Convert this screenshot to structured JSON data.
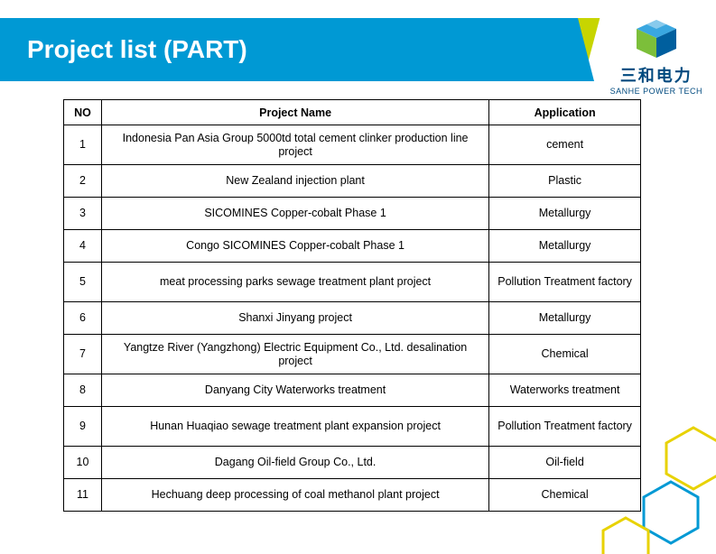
{
  "header": {
    "title": "Project list (PART)",
    "bar_color": "#0099d4",
    "accent_color": "#c7d500"
  },
  "logo": {
    "cn": "三和电力",
    "en": "SANHE POWER TECH",
    "cube_color_top": "#3aa7e0",
    "cube_color_left": "#7cbf3a",
    "cube_color_right": "#005f9e"
  },
  "table": {
    "columns": [
      "NO",
      "Project Name",
      "Application"
    ],
    "rows": [
      {
        "no": "1",
        "name": "Indonesia Pan Asia Group 5000td total cement clinker production line project",
        "app": "cement",
        "tall": true
      },
      {
        "no": "2",
        "name": "New Zealand injection plant",
        "app": "Plastic"
      },
      {
        "no": "3",
        "name": "SICOMINES Copper-cobalt Phase 1",
        "app": "Metallurgy"
      },
      {
        "no": "4",
        "name": "Congo SICOMINES Copper-cobalt Phase 1",
        "app": "Metallurgy"
      },
      {
        "no": "5",
        "name": "meat processing parks sewage treatment plant project",
        "app": "Pollution Treatment factory",
        "tall": true
      },
      {
        "no": "6",
        "name": "Shanxi Jinyang project",
        "app": "Metallurgy"
      },
      {
        "no": "7",
        "name": "Yangtze River (Yangzhong) Electric Equipment Co., Ltd. desalination project",
        "app": "Chemical",
        "tall": true
      },
      {
        "no": "8",
        "name": "Danyang City Waterworks treatment",
        "app": "Waterworks treatment"
      },
      {
        "no": "9",
        "name": "Hunan Huaqiao sewage treatment plant expansion project",
        "app": "Pollution Treatment factory",
        "tall": true
      },
      {
        "no": "10",
        "name": "Dagang Oil-field Group Co., Ltd.",
        "app": "Oil-field"
      },
      {
        "no": "11",
        "name": "Hechuang  deep processing of coal methanol plant project",
        "app": "Chemical"
      }
    ]
  },
  "hexagons": {
    "stroke_blue": "#0099d4",
    "stroke_yellow": "#e8d200"
  }
}
